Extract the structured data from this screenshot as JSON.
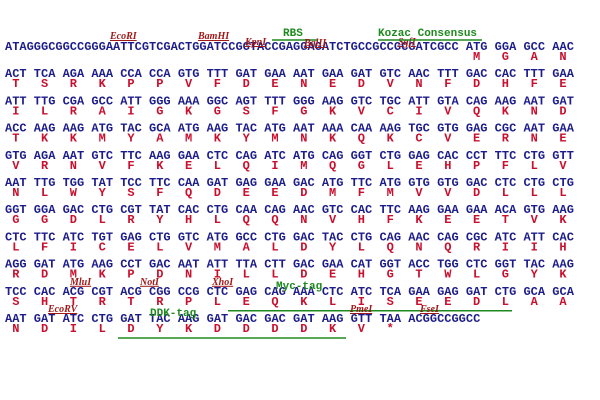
{
  "lines": [
    {
      "seq": "ATAGGGCGGCCGGGAATTCGTCGACTGGATCCGGTACCGAGGAGATCTGCCGCCGCGATCGCC ATG GGA GCC AAC",
      "aa": [
        "M",
        "G",
        "A",
        "N"
      ],
      "features": [
        {
          "label": "EcoRI",
          "color": "#a01818"
        },
        {
          "label": "BamHI",
          "color": "#a01818"
        },
        {
          "label": "KpnI",
          "color": "#a01818"
        },
        {
          "label": "RBS",
          "color": "#1e8a1e"
        },
        {
          "label": "BglII",
          "color": "#a01818"
        },
        {
          "label": "SgfI",
          "color": "#a01818"
        },
        {
          "label": "Kozac Consensus",
          "color": "#1e8a1e"
        }
      ]
    },
    {
      "seq": "ACT TCA AGA AAA CCA CCA GTG TTT GAT GAA AAT GAA GAT GTC AAC TTT GAC CAC TTT GAA",
      "aa": [
        "T",
        "S",
        "R",
        "K",
        "P",
        "P",
        "V",
        "F",
        "D",
        "E",
        "N",
        "E",
        "D",
        "V",
        "N",
        "F",
        "D",
        "H",
        "F",
        "E"
      ]
    },
    {
      "seq": "ATT TTG CGA GCC ATT GGG AAA GGC AGT TTT GGG AAG GTC TGC ATT GTA CAG AAG AAT GAT",
      "aa": [
        "I",
        "L",
        "R",
        "A",
        "I",
        "G",
        "K",
        "G",
        "S",
        "F",
        "G",
        "K",
        "V",
        "C",
        "I",
        "V",
        "Q",
        "K",
        "N",
        "D"
      ]
    },
    {
      "seq": "ACC AAG AAG ATG TAC GCA ATG AAG TAC ATG AAT AAA CAA AAG TGC GTG GAG CGC AAT GAA",
      "aa": [
        "T",
        "K",
        "K",
        "M",
        "Y",
        "A",
        "M",
        "K",
        "Y",
        "M",
        "N",
        "K",
        "Q",
        "K",
        "C",
        "V",
        "E",
        "R",
        "N",
        "E"
      ]
    },
    {
      "seq": "GTG AGA AAT GTC TTC AAG GAA CTC CAG ATC ATG CAG GGT CTG GAG CAC CCT TTC CTG GTT",
      "aa": [
        "V",
        "R",
        "N",
        "V",
        "F",
        "K",
        "E",
        "L",
        "Q",
        "I",
        "M",
        "Q",
        "G",
        "L",
        "E",
        "H",
        "P",
        "F",
        "L",
        "V"
      ]
    },
    {
      "seq": "AAT TTG TGG TAT TCC TTC CAA GAT GAG GAA GAC ATG TTC ATG GTG GTG GAC CTC CTG CTG",
      "aa": [
        "N",
        "L",
        "W",
        "Y",
        "S",
        "F",
        "Q",
        "D",
        "E",
        "E",
        "D",
        "M",
        "F",
        "M",
        "V",
        "V",
        "D",
        "L",
        "L",
        "L"
      ]
    },
    {
      "seq": "GGT GGA GAC CTG CGT TAT CAC CTG CAA CAG AAC GTC CAC TTC AAG GAA GAA ACA GTG AAG",
      "aa": [
        "G",
        "G",
        "D",
        "L",
        "R",
        "Y",
        "H",
        "L",
        "Q",
        "Q",
        "N",
        "V",
        "H",
        "F",
        "K",
        "E",
        "E",
        "T",
        "V",
        "K"
      ]
    },
    {
      "seq": "CTC TTC ATC TGT GAG CTG GTC ATG GCC CTG GAC TAC CTG CAG AAC CAG CGC ATC ATT CAC",
      "aa": [
        "L",
        "F",
        "I",
        "C",
        "E",
        "L",
        "V",
        "M",
        "A",
        "L",
        "D",
        "Y",
        "L",
        "Q",
        "N",
        "Q",
        "R",
        "I",
        "I",
        "H"
      ]
    },
    {
      "seq": "AGG GAT ATG AAG CCT GAC AAT ATT TTA CTT GAC GAA CAT GGT ACC TGG CTC GGT TAC AAG",
      "aa": [
        "R",
        "D",
        "M",
        "K",
        "P",
        "D",
        "N",
        "I",
        "L",
        "L",
        "D",
        "E",
        "H",
        "G",
        "T",
        "W",
        "L",
        "G",
        "Y",
        "K"
      ]
    },
    {
      "seq": "TCC CAC ACG CGT ACG CGG CCG CTC GAG CAG AAA CTC ATC TCA GAA GAG GAT CTG GCA GCA",
      "aa": [
        "S",
        "H",
        "T",
        "R",
        "T",
        "R",
        "P",
        "L",
        "E",
        "Q",
        "K",
        "L",
        "I",
        "S",
        "E",
        "E",
        "D",
        "L",
        "A",
        "A"
      ],
      "features": [
        {
          "label": "MluI",
          "color": "#a01818"
        },
        {
          "label": "NotI",
          "color": "#a01818"
        },
        {
          "label": "XhoI",
          "color": "#a01818"
        },
        {
          "label": "Myc-tag",
          "color": "#1e8a1e"
        }
      ]
    },
    {
      "seq": "AAT GAT ATC CTG GAT TAC AAG GAT GAC GAC GAT AAG GTT TAA ACGGCCGGCC",
      "aa": [
        "N",
        "D",
        "I",
        "L",
        "D",
        "Y",
        "K",
        "D",
        "D",
        "D",
        "D",
        "K",
        "V",
        "*"
      ],
      "features": [
        {
          "label": "EcoRV",
          "color": "#a01818"
        },
        {
          "label": "DDK-tag",
          "color": "#1e8a1e"
        },
        {
          "label": "PmeI",
          "color": "#a01818"
        },
        {
          "label": "FseI",
          "color": "#a01818"
        }
      ]
    }
  ]
}
